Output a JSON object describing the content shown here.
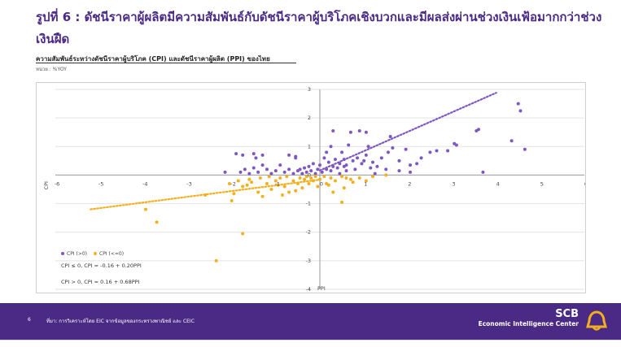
{
  "title": "รูปที่ 6 : ดัชนีราคาผู้ผลิตมีความสัมพันธ์กับดัชนีราคาผู้บริโภคเชิงบวกและมีผลส่งผ่านช่วงเงินเฟ้อมากกว่าช่วงเงินฝืด",
  "subtitle": "ความสัมพันธ์ระหว่างดัชนีราคาผู้บริโภค (CPI) และดัชนีราคาผู้ผลิต (PPI) ของไทย",
  "unit": "หน่วย : %YOY",
  "footer": {
    "page": "6",
    "source": "ที่มา: การวิเคราะห์โดย EIC จากข้อมูลของกระทรวงพาณิชย์ และ CEIC",
    "brand_top": "SCB",
    "brand_bottom": "Economic Intelligence Center"
  },
  "colors": {
    "accent": "#4b2a85",
    "pos": "#7e57c2",
    "neg": "#f2b01e",
    "footer": "#4b2a85"
  },
  "icons": {
    "logo": "scb-bell-icon"
  },
  "chart_data": {
    "type": "scatter",
    "xlabel": "PPI",
    "ylabel": "CPI",
    "xlim": [
      -6,
      6
    ],
    "ylim": [
      -4,
      3
    ],
    "xticks": [
      -6,
      -5,
      -4,
      -3,
      -2,
      -1,
      0,
      1,
      2,
      3,
      4,
      5,
      6
    ],
    "yticks": [
      -4,
      -3,
      -2,
      -1,
      0,
      1,
      2,
      3
    ],
    "x_tick_labels": [
      "-6",
      "-5",
      "-4",
      "-3",
      "-2",
      "-1",
      "0",
      "1",
      "2",
      "3",
      "4",
      "5",
      "6"
    ],
    "y_tick_labels": [
      "-4",
      "-3",
      "-2",
      "-1",
      "0",
      "1",
      "2",
      "3"
    ],
    "grid": true,
    "legend": {
      "position": "bottom-left",
      "entries": [
        "CPI (>0)",
        "CPI (<=0)"
      ]
    },
    "annotations": [
      "CPI ≤ 0, CPI = -0.16 + 0.20PPI",
      "CPI > 0, CPI = 0.16 + 0.68PPI"
    ],
    "series": [
      {
        "name": "CPI (>0)",
        "color": "#7e57c2",
        "points": [
          [
            4.5,
            2.5
          ],
          [
            4.55,
            2.25
          ],
          [
            4.35,
            1.2
          ],
          [
            4.65,
            0.9
          ],
          [
            3.6,
            1.6
          ],
          [
            3.55,
            1.55
          ],
          [
            3.05,
            1.1
          ],
          [
            3.1,
            1.05
          ],
          [
            2.9,
            0.85
          ],
          [
            3.7,
            0.1
          ],
          [
            2.5,
            0.8
          ],
          [
            2.3,
            0.6
          ],
          [
            2.2,
            0.4
          ],
          [
            2.05,
            0.35
          ],
          [
            1.95,
            0.9
          ],
          [
            1.8,
            0.5
          ],
          [
            1.6,
            1.35
          ],
          [
            1.55,
            0.8
          ],
          [
            1.4,
            0.6
          ],
          [
            1.3,
            0.3
          ],
          [
            1.2,
            0.45
          ],
          [
            1.1,
            1.0
          ],
          [
            1.0,
            0.5
          ],
          [
            1.05,
            0.7
          ],
          [
            0.95,
            0.4
          ],
          [
            0.85,
            0.6
          ],
          [
            0.8,
            0.2
          ],
          [
            0.75,
            0.5
          ],
          [
            0.7,
            1.5
          ],
          [
            0.65,
            1.05
          ],
          [
            0.6,
            0.35
          ],
          [
            0.55,
            0.3
          ],
          [
            0.5,
            0.8
          ],
          [
            0.45,
            0.4
          ],
          [
            0.4,
            0.25
          ],
          [
            0.35,
            0.55
          ],
          [
            0.3,
            0.3
          ],
          [
            0.25,
            0.15
          ],
          [
            0.2,
            0.45
          ],
          [
            0.15,
            0.2
          ],
          [
            0.1,
            0.6
          ],
          [
            0.05,
            0.1
          ],
          [
            0.0,
            0.35
          ],
          [
            -0.05,
            0.2
          ],
          [
            -0.1,
            0.05
          ],
          [
            -0.15,
            0.4
          ],
          [
            -0.2,
            0.15
          ],
          [
            -0.25,
            0.3
          ],
          [
            -0.3,
            0.1
          ],
          [
            -0.35,
            0.25
          ],
          [
            -0.4,
            0.05
          ],
          [
            -0.45,
            0.2
          ],
          [
            -0.5,
            0.15
          ],
          [
            -0.55,
            0.6
          ],
          [
            -0.6,
            0.05
          ],
          [
            -0.7,
            0.2
          ],
          [
            -0.8,
            0.1
          ],
          [
            -0.9,
            0.35
          ],
          [
            -1.0,
            0.15
          ],
          [
            -1.1,
            0.05
          ],
          [
            -1.2,
            0.2
          ],
          [
            -1.3,
            0.35
          ],
          [
            -1.4,
            0.1
          ],
          [
            -1.5,
            0.25
          ],
          [
            -1.6,
            0.05
          ],
          [
            -1.7,
            0.2
          ],
          [
            -1.8,
            0.1
          ],
          [
            -1.9,
            0.75
          ],
          [
            -1.75,
            0.7
          ],
          [
            -1.5,
            0.75
          ],
          [
            -1.45,
            0.6
          ],
          [
            -1.3,
            0.7
          ],
          [
            -0.7,
            0.7
          ],
          [
            -0.55,
            0.65
          ],
          [
            -2.15,
            0.1
          ],
          [
            0.25,
            1.0
          ],
          [
            0.9,
            1.55
          ],
          [
            1.05,
            1.5
          ],
          [
            0.3,
            1.55
          ],
          [
            1.65,
            0.95
          ],
          [
            2.65,
            0.85
          ],
          [
            0.6,
            0.15
          ],
          [
            1.5,
            0.2
          ],
          [
            1.8,
            0.15
          ],
          [
            2.05,
            0.1
          ],
          [
            0.45,
            0.05
          ],
          [
            1.25,
            0.05
          ],
          [
            0.15,
            0.8
          ],
          [
            0.55,
            0.55
          ],
          [
            1.15,
            0.25
          ]
        ]
      },
      {
        "name": "CPI (<=0)",
        "color": "#f2b01e",
        "points": [
          [
            -2.35,
            -3.0
          ],
          [
            -1.75,
            -2.05
          ],
          [
            -3.7,
            -1.65
          ],
          [
            -3.95,
            -1.2
          ],
          [
            -2.6,
            -0.7
          ],
          [
            -2.0,
            -0.9
          ],
          [
            -1.95,
            -0.65
          ],
          [
            -1.75,
            -0.4
          ],
          [
            -1.55,
            -0.25
          ],
          [
            -1.4,
            -0.6
          ],
          [
            -1.3,
            -0.75
          ],
          [
            -1.2,
            -0.3
          ],
          [
            -1.1,
            -0.5
          ],
          [
            -1.0,
            -0.2
          ],
          [
            -0.9,
            -0.1
          ],
          [
            -0.8,
            -0.4
          ],
          [
            -0.75,
            -0.05
          ],
          [
            -0.7,
            -0.6
          ],
          [
            -0.6,
            -0.2
          ],
          [
            -0.5,
            -0.3
          ],
          [
            -0.45,
            -0.1
          ],
          [
            -0.4,
            -0.45
          ],
          [
            -0.35,
            -0.15
          ],
          [
            -0.3,
            -0.05
          ],
          [
            -0.25,
            -0.3
          ],
          [
            -0.2,
            -0.1
          ],
          [
            -0.15,
            -0.2
          ],
          [
            -0.1,
            -0.05
          ],
          [
            -0.05,
            -0.4
          ],
          [
            0.0,
            -0.15
          ],
          [
            0.1,
            -0.05
          ],
          [
            0.15,
            -0.3
          ],
          [
            0.25,
            -0.1
          ],
          [
            0.35,
            -0.2
          ],
          [
            0.5,
            -0.05
          ],
          [
            0.55,
            -0.45
          ],
          [
            0.6,
            -0.1
          ],
          [
            0.75,
            -0.25
          ],
          [
            0.9,
            -0.1
          ],
          [
            1.05,
            -0.2
          ],
          [
            1.2,
            -0.05
          ],
          [
            0.5,
            -0.95
          ],
          [
            1.5,
            0.0
          ],
          [
            -1.85,
            -0.2
          ],
          [
            -1.6,
            -0.15
          ],
          [
            -2.05,
            -0.3
          ],
          [
            -0.85,
            -0.7
          ],
          [
            -1.15,
            -0.05
          ],
          [
            -0.55,
            -0.55
          ],
          [
            0.3,
            -0.6
          ],
          [
            -1.65,
            -0.35
          ],
          [
            -1.35,
            -0.1
          ],
          [
            -0.95,
            -0.35
          ],
          [
            0.2,
            -0.35
          ],
          [
            0.7,
            -0.15
          ]
        ]
      }
    ],
    "trendlines": [
      {
        "name": "CPI ≤ 0",
        "intercept": -0.16,
        "slope": 0.2,
        "x_range": [
          -5.2,
          0
        ],
        "color": "#f2b01e"
      },
      {
        "name": "CPI > 0",
        "intercept": 0.16,
        "slope": 0.68,
        "x_range": [
          0,
          4.0
        ],
        "color": "#7e57c2"
      }
    ]
  }
}
